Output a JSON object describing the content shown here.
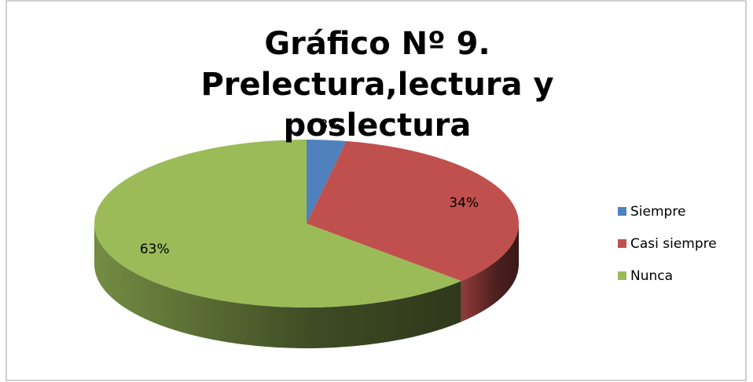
{
  "chart_data": {
    "type": "pie",
    "title": "Gráfico Nº 9. Prelectura,lectura y poslectura",
    "categories": [
      "Siempre",
      "Casi siempre",
      "Nunca"
    ],
    "values": [
      3,
      34,
      63
    ],
    "value_labels": [
      "3%",
      "34%",
      "63%"
    ],
    "colors": [
      "#4f81bd",
      "#c0504d",
      "#9bbb59"
    ],
    "legend": "right"
  }
}
